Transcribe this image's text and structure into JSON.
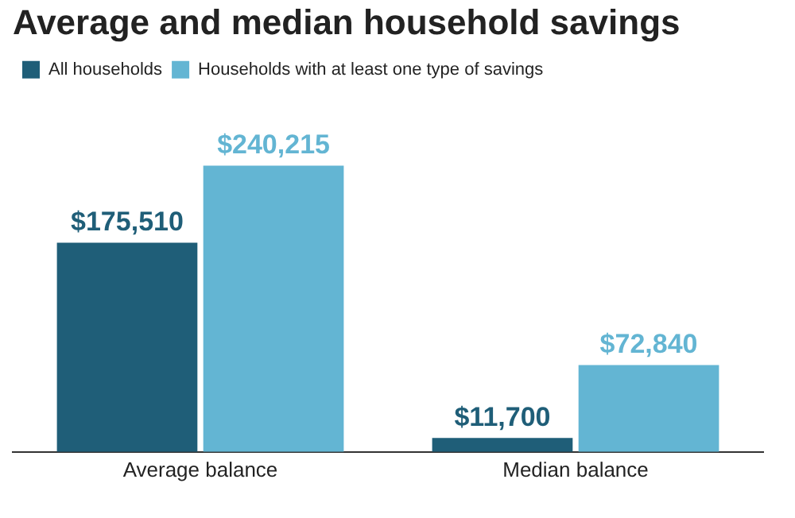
{
  "chart_data": {
    "type": "bar",
    "title": "Average and median household savings",
    "categories": [
      "Average balance",
      "Median balance"
    ],
    "series": [
      {
        "name": "All households",
        "color": "#1f5e78",
        "values": [
          175510,
          11700
        ],
        "value_labels": [
          "$175,510",
          "$11,700"
        ]
      },
      {
        "name": "Households with at least one type of savings",
        "color": "#63b5d3",
        "values": [
          240215,
          72840
        ],
        "value_labels": [
          "$240,215",
          "$72,840"
        ]
      }
    ],
    "legend": "top left",
    "tick_labels": "x",
    "grid": false
  }
}
